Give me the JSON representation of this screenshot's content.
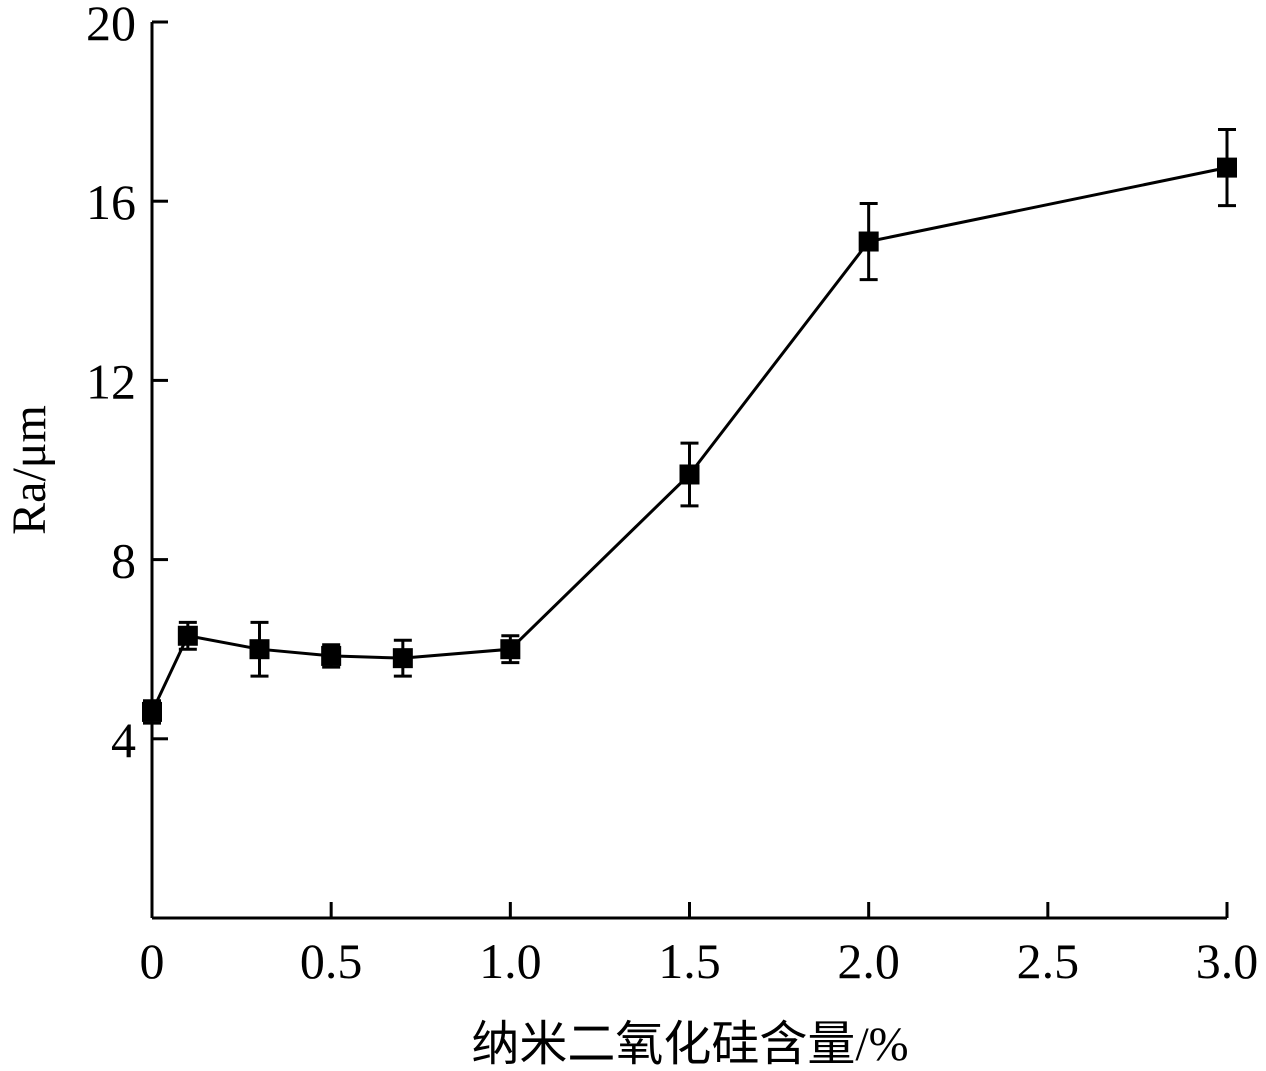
{
  "chart_data": {
    "type": "line",
    "title": "",
    "xlabel": "纳米二氧化硅含量/%",
    "ylabel": "Ra/μm",
    "xlim": [
      0,
      3.0
    ],
    "ylim": [
      0,
      20
    ],
    "x_ticks": [
      0,
      0.5,
      1.0,
      1.5,
      2.0,
      2.5,
      3.0
    ],
    "x_tick_labels": [
      "0",
      "0.5",
      "1.0",
      "1.5",
      "2.0",
      "2.5",
      "3.0"
    ],
    "y_ticks": [
      4,
      8,
      12,
      16,
      20
    ],
    "y_tick_labels": [
      "4",
      "8",
      "12",
      "16",
      "20"
    ],
    "grid": false,
    "legend": "none",
    "marker": "square",
    "line_color": "#000000",
    "series": [
      {
        "x": [
          0,
          0.1,
          0.3,
          0.5,
          0.7,
          1.0,
          1.5,
          2.0,
          3.0
        ],
        "y": [
          4.6,
          6.3,
          6.0,
          5.85,
          5.8,
          6.0,
          9.9,
          15.1,
          16.75
        ],
        "error": [
          0.25,
          0.3,
          0.6,
          0.25,
          0.4,
          0.3,
          0.7,
          0.85,
          0.85
        ]
      }
    ]
  }
}
